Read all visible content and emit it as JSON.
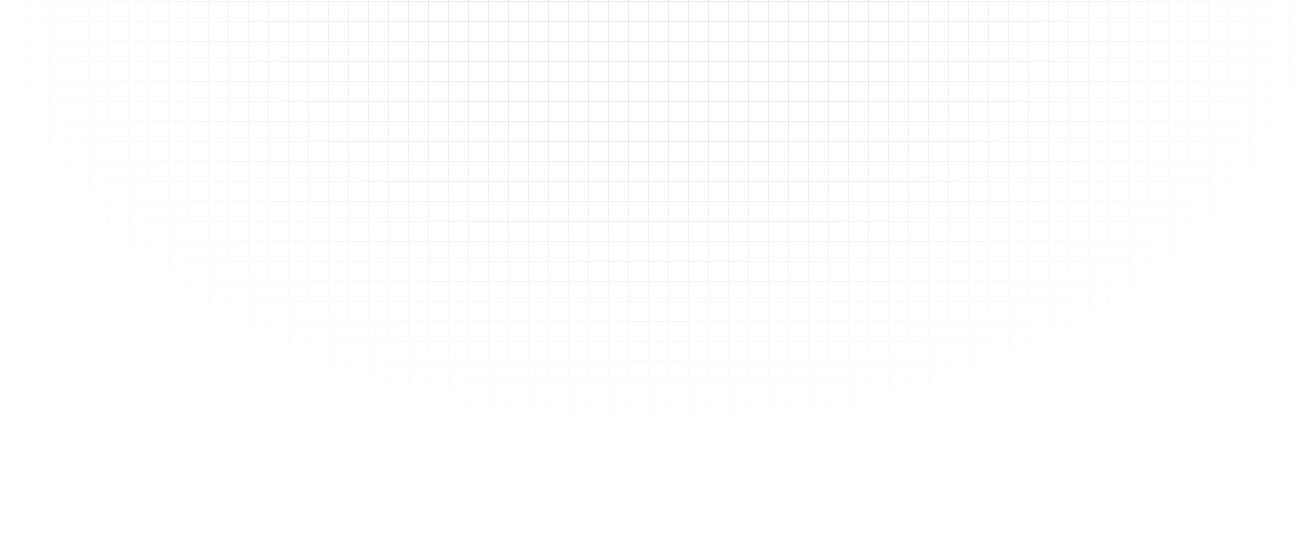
{
  "background": {
    "color": "#ffffff",
    "grid_line_color": "#ececec"
  }
}
